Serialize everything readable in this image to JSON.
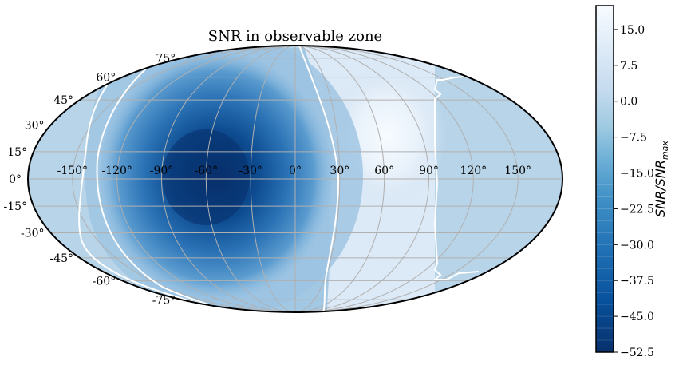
{
  "chart_data": {
    "type": "heatmap",
    "projection": "mollweide",
    "title": "SNR in observable zone",
    "longitude_ticks": [
      "-150°",
      "-120°",
      "-90°",
      "-60°",
      "-30°",
      "0°",
      "30°",
      "60°",
      "90°",
      "120°",
      "150°"
    ],
    "latitude_ticks": [
      "75°",
      "60°",
      "45°",
      "30°",
      "15°",
      "0°",
      "-15°",
      "-30°",
      "-45°",
      "-60°",
      "-75°"
    ],
    "grid": true,
    "colormap": "Blues",
    "colorbar": {
      "label": "SNR/SNRmax",
      "label_main": "SNR/SNR",
      "label_sub": "max",
      "location": "right",
      "range": [
        -52.5,
        20
      ],
      "ticks": [
        "15.0",
        "7.5",
        "0.0",
        "−7.5",
        "−15.0",
        "−22.5",
        "−30.0",
        "−37.5",
        "−45.0",
        "−52.5"
      ]
    },
    "field": {
      "min_value": -52.5,
      "min_location_lon_lat": [
        -60,
        0
      ],
      "max_value": 15,
      "max_location_lon_lat": [
        50,
        0
      ],
      "background_value": -12,
      "zero_contour_lon_near_equator": 30,
      "outer_contour_lon_near_equator": -125,
      "east_boundary_lon": 90
    },
    "colors": {
      "darkest": "#08306b",
      "lightest": "#f7fbff",
      "background_fill": "#b8d4e9",
      "contour": "#ffffff",
      "grid": "#b0b0b0"
    }
  }
}
